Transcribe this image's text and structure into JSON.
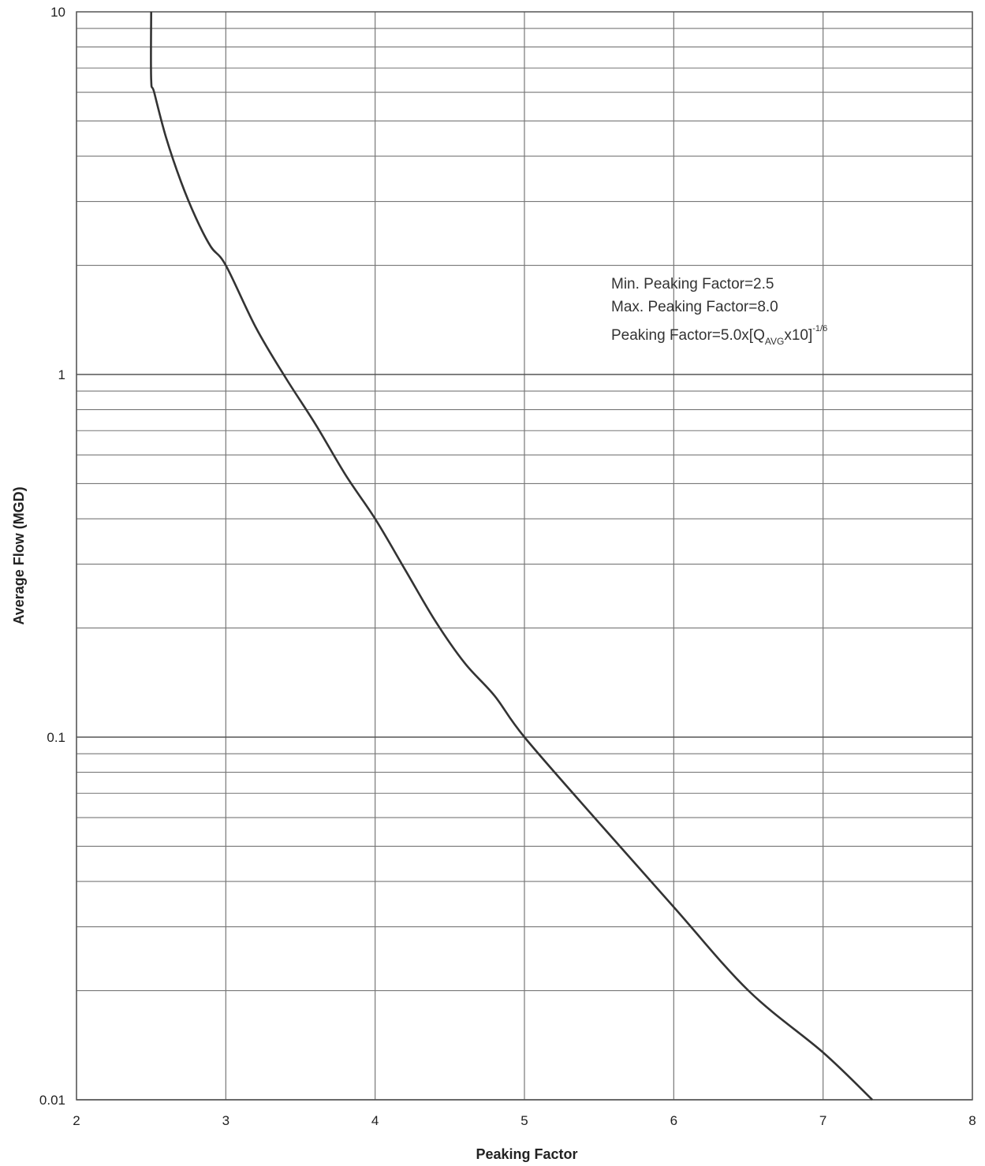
{
  "chart_data": {
    "type": "line",
    "title": "",
    "xlabel": "Peaking Factor",
    "ylabel": "Average Flow (MGD)",
    "xlim": [
      2,
      8
    ],
    "ylim": [
      0.01,
      10
    ],
    "x_scale": "linear",
    "y_scale": "log",
    "x_ticks": [
      "2",
      "3",
      "4",
      "5",
      "6",
      "7",
      "8"
    ],
    "y_ticks": [
      "0.01",
      "0.1",
      "1",
      "10"
    ],
    "grid": true,
    "annotations": {
      "min_line": "Min. Peaking Factor=2.5",
      "max_line": "Max. Peaking Factor=8.0",
      "formula_prefix": "Peaking Factor=5.0x[Q",
      "formula_sub": "AVG",
      "formula_mid": "x10]",
      "formula_sup": "-1/6"
    },
    "series": [
      {
        "x": [
          2.5,
          2.5,
          2.52,
          2.6,
          2.7,
          2.8,
          2.9,
          3.0,
          3.2,
          3.4,
          3.6,
          3.8,
          4.0,
          4.2,
          4.4,
          4.6,
          4.8,
          5.0,
          5.5,
          6.0,
          6.5,
          7.0,
          7.33
        ],
        "y": [
          10,
          6.5,
          6.0,
          4.5,
          3.4,
          2.7,
          2.25,
          2.0,
          1.35,
          0.98,
          0.73,
          0.53,
          0.4,
          0.29,
          0.21,
          0.16,
          0.13,
          0.1,
          0.058,
          0.034,
          0.02,
          0.0135,
          0.01
        ]
      }
    ]
  }
}
